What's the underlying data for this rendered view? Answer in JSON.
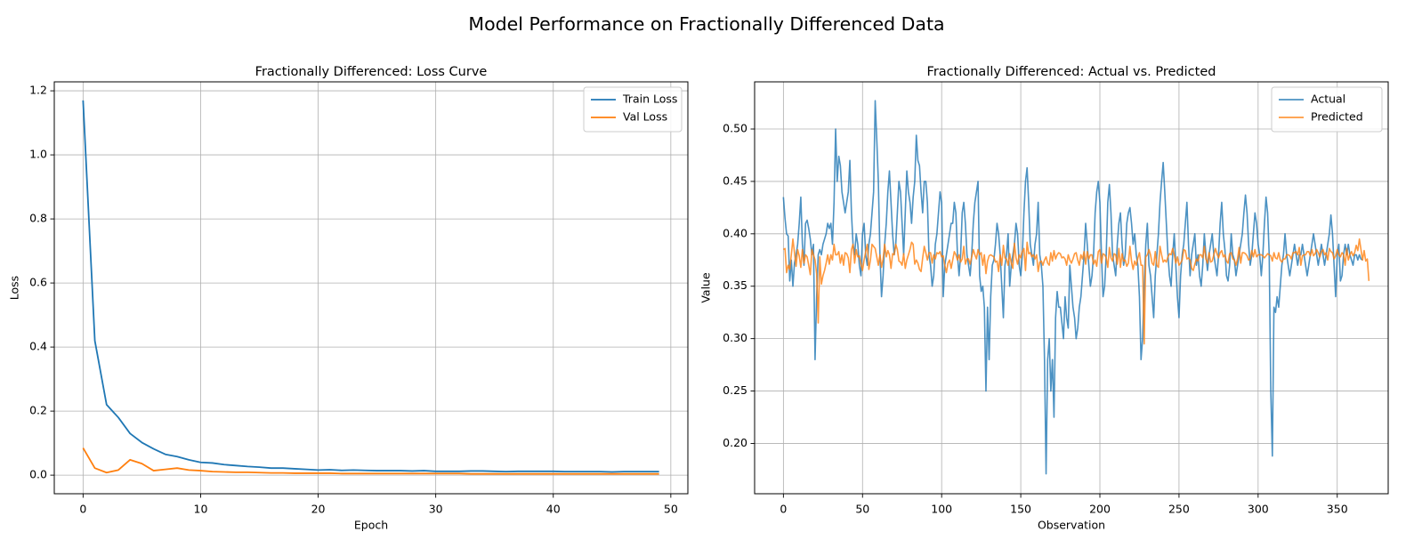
{
  "figure_title": "Model Performance on Fractionally Differenced Data",
  "chart_data": [
    {
      "type": "line",
      "title": "Fractionally Differenced: Loss Curve",
      "xlabel": "Epoch",
      "ylabel": "Loss",
      "xlim": [
        -2.45,
        51.45
      ],
      "ylim": [
        -0.058,
        1.228
      ],
      "xticks": [
        0,
        10,
        20,
        30,
        40,
        50
      ],
      "xtick_labels": [
        "0",
        "10",
        "20",
        "30",
        "40",
        "50"
      ],
      "yticks": [
        0.0,
        0.2,
        0.4,
        0.6,
        0.8,
        1.0,
        1.2
      ],
      "ytick_labels": [
        "0.0",
        "0.2",
        "0.4",
        "0.6",
        "0.8",
        "1.0",
        "1.2"
      ],
      "grid": true,
      "legend_position": "top-right",
      "series": [
        {
          "name": "Train Loss",
          "color": "#1f77b4",
          "x": [
            0,
            1,
            2,
            3,
            4,
            5,
            6,
            7,
            8,
            9,
            10,
            11,
            12,
            13,
            14,
            15,
            16,
            17,
            18,
            19,
            20,
            21,
            22,
            23,
            24,
            25,
            26,
            27,
            28,
            29,
            30,
            31,
            32,
            33,
            34,
            35,
            36,
            37,
            38,
            39,
            40,
            41,
            42,
            43,
            44,
            45,
            46,
            47,
            48,
            49
          ],
          "values": [
            1.17,
            0.42,
            0.22,
            0.18,
            0.13,
            0.102,
            0.082,
            0.065,
            0.058,
            0.048,
            0.04,
            0.038,
            0.033,
            0.03,
            0.027,
            0.025,
            0.022,
            0.022,
            0.02,
            0.018,
            0.016,
            0.017,
            0.015,
            0.016,
            0.015,
            0.014,
            0.014,
            0.014,
            0.013,
            0.014,
            0.012,
            0.012,
            0.012,
            0.013,
            0.013,
            0.012,
            0.011,
            0.012,
            0.012,
            0.012,
            0.012,
            0.011,
            0.011,
            0.011,
            0.011,
            0.01,
            0.011,
            0.011,
            0.011,
            0.011
          ]
        },
        {
          "name": "Val Loss",
          "color": "#ff7f0e",
          "x": [
            0,
            1,
            2,
            3,
            4,
            5,
            6,
            7,
            8,
            9,
            10,
            11,
            12,
            13,
            14,
            15,
            16,
            17,
            18,
            19,
            20,
            21,
            22,
            23,
            24,
            25,
            26,
            27,
            28,
            29,
            30,
            31,
            32,
            33,
            34,
            35,
            36,
            37,
            38,
            39,
            40,
            41,
            42,
            43,
            44,
            45,
            46,
            47,
            48,
            49
          ],
          "values": [
            0.085,
            0.022,
            0.008,
            0.016,
            0.048,
            0.036,
            0.014,
            0.018,
            0.022,
            0.016,
            0.014,
            0.011,
            0.01,
            0.009,
            0.009,
            0.008,
            0.007,
            0.007,
            0.006,
            0.006,
            0.006,
            0.006,
            0.005,
            0.005,
            0.005,
            0.005,
            0.005,
            0.005,
            0.005,
            0.005,
            0.005,
            0.005,
            0.005,
            0.004,
            0.004,
            0.004,
            0.004,
            0.004,
            0.004,
            0.004,
            0.004,
            0.004,
            0.004,
            0.004,
            0.004,
            0.004,
            0.004,
            0.004,
            0.004,
            0.004
          ]
        }
      ]
    },
    {
      "type": "line",
      "title": "Fractionally Differenced: Actual vs. Predicted",
      "xlabel": "Observation",
      "ylabel": "Value",
      "xlim": [
        -18.2,
        382.2
      ],
      "ylim": [
        0.152,
        0.545
      ],
      "xticks": [
        0,
        50,
        100,
        150,
        200,
        250,
        300,
        350
      ],
      "xtick_labels": [
        "0",
        "50",
        "100",
        "150",
        "200",
        "250",
        "300",
        "350"
      ],
      "yticks": [
        0.2,
        0.25,
        0.3,
        0.35,
        0.4,
        0.45,
        0.5
      ],
      "ytick_labels": [
        "0.20",
        "0.25",
        "0.30",
        "0.35",
        "0.40",
        "0.45",
        "0.50"
      ],
      "grid": true,
      "legend_position": "top-right",
      "n_points": 365,
      "series": [
        {
          "name": "Actual",
          "color": "#1f77b4",
          "opacity": 0.8,
          "values": [
            0.435,
            0.415,
            0.4,
            0.398,
            0.355,
            0.375,
            0.35,
            0.372,
            0.38,
            0.39,
            0.41,
            0.435,
            0.39,
            0.37,
            0.41,
            0.413,
            0.405,
            0.395,
            0.38,
            0.39,
            0.28,
            0.34,
            0.38,
            0.385,
            0.38,
            0.39,
            0.395,
            0.4,
            0.41,
            0.405,
            0.41,
            0.39,
            0.43,
            0.5,
            0.45,
            0.474,
            0.465,
            0.44,
            0.43,
            0.42,
            0.43,
            0.44,
            0.47,
            0.42,
            0.39,
            0.38,
            0.4,
            0.39,
            0.37,
            0.36,
            0.4,
            0.41,
            0.38,
            0.37,
            0.39,
            0.4,
            0.42,
            0.44,
            0.527,
            0.49,
            0.45,
            0.38,
            0.34,
            0.36,
            0.39,
            0.41,
            0.44,
            0.46,
            0.43,
            0.4,
            0.38,
            0.39,
            0.42,
            0.45,
            0.44,
            0.41,
            0.38,
            0.42,
            0.46,
            0.44,
            0.43,
            0.41,
            0.435,
            0.45,
            0.494,
            0.47,
            0.465,
            0.44,
            0.42,
            0.45,
            0.45,
            0.43,
            0.38,
            0.37,
            0.35,
            0.36,
            0.39,
            0.4,
            0.42,
            0.44,
            0.43,
            0.34,
            0.37,
            0.38,
            0.39,
            0.4,
            0.41,
            0.41,
            0.43,
            0.42,
            0.38,
            0.36,
            0.38,
            0.42,
            0.43,
            0.41,
            0.38,
            0.37,
            0.36,
            0.38,
            0.41,
            0.43,
            0.44,
            0.45,
            0.36,
            0.345,
            0.35,
            0.33,
            0.25,
            0.33,
            0.28,
            0.34,
            0.37,
            0.375,
            0.39,
            0.41,
            0.4,
            0.38,
            0.35,
            0.32,
            0.37,
            0.38,
            0.4,
            0.35,
            0.37,
            0.38,
            0.39,
            0.41,
            0.4,
            0.37,
            0.36,
            0.38,
            0.42,
            0.45,
            0.463,
            0.43,
            0.39,
            0.38,
            0.37,
            0.39,
            0.4,
            0.43,
            0.38,
            0.37,
            0.35,
            0.28,
            0.171,
            0.28,
            0.3,
            0.25,
            0.28,
            0.225,
            0.32,
            0.345,
            0.33,
            0.33,
            0.315,
            0.3,
            0.34,
            0.32,
            0.31,
            0.37,
            0.35,
            0.33,
            0.32,
            0.3,
            0.31,
            0.33,
            0.34,
            0.36,
            0.38,
            0.41,
            0.39,
            0.37,
            0.35,
            0.36,
            0.38,
            0.42,
            0.44,
            0.45,
            0.43,
            0.38,
            0.34,
            0.35,
            0.38,
            0.43,
            0.447,
            0.42,
            0.38,
            0.37,
            0.36,
            0.39,
            0.41,
            0.42,
            0.39,
            0.37,
            0.38,
            0.41,
            0.42,
            0.425,
            0.41,
            0.39,
            0.4,
            0.38,
            0.37,
            0.34,
            0.28,
            0.3,
            0.35,
            0.39,
            0.41,
            0.37,
            0.36,
            0.34,
            0.32,
            0.36,
            0.38,
            0.4,
            0.43,
            0.45,
            0.468,
            0.44,
            0.41,
            0.38,
            0.36,
            0.35,
            0.38,
            0.4,
            0.37,
            0.34,
            0.32,
            0.36,
            0.38,
            0.39,
            0.41,
            0.43,
            0.39,
            0.36,
            0.38,
            0.39,
            0.4,
            0.37,
            0.38,
            0.36,
            0.35,
            0.37,
            0.4,
            0.38,
            0.365,
            0.38,
            0.39,
            0.4,
            0.38,
            0.37,
            0.36,
            0.38,
            0.41,
            0.43,
            0.4,
            0.385,
            0.36,
            0.355,
            0.37,
            0.4,
            0.38,
            0.375,
            0.36,
            0.37,
            0.38,
            0.39,
            0.4,
            0.42,
            0.437,
            0.42,
            0.39,
            0.37,
            0.38,
            0.4,
            0.42,
            0.41,
            0.39,
            0.38,
            0.36,
            0.38,
            0.41,
            0.435,
            0.42,
            0.38,
            0.25,
            0.188,
            0.33,
            0.325,
            0.34,
            0.33,
            0.35,
            0.37,
            0.38,
            0.4,
            0.38,
            0.37,
            0.36,
            0.37,
            0.38,
            0.39,
            0.38,
            0.37,
            0.38,
            0.38,
            0.39,
            0.38,
            0.37,
            0.36,
            0.37,
            0.38,
            0.39,
            0.4,
            0.39,
            0.38,
            0.37,
            0.38,
            0.39,
            0.38,
            0.37,
            0.38,
            0.39,
            0.4,
            0.418,
            0.4,
            0.37,
            0.34,
            0.38,
            0.39,
            0.355,
            0.36,
            0.38,
            0.39,
            0.38,
            0.39,
            0.38,
            0.375,
            0.37,
            0.38,
            0.38,
            0.375,
            0.38,
            0.376,
            0.375
          ]
        },
        {
          "name": "Predicted",
          "color": "#ff7f0e",
          "opacity": 0.8,
          "values": [
            0.385,
            0.386,
            0.363,
            0.37,
            0.366,
            0.38,
            0.395,
            0.382,
            0.369,
            0.385,
            0.379,
            0.368,
            0.385,
            0.372,
            0.38,
            0.378,
            0.37,
            0.361,
            0.385,
            0.38,
            0.375,
            0.362,
            0.315,
            0.378,
            0.352,
            0.36,
            0.365,
            0.372,
            0.38,
            0.371,
            0.38,
            0.375,
            0.39,
            0.38,
            0.38,
            0.383,
            0.372,
            0.38,
            0.37,
            0.382,
            0.381,
            0.377,
            0.363,
            0.385,
            0.39,
            0.372,
            0.385,
            0.378,
            0.379,
            0.371,
            0.365,
            0.375,
            0.383,
            0.39,
            0.366,
            0.375,
            0.39,
            0.388,
            0.386,
            0.378,
            0.37,
            0.38,
            0.368,
            0.376,
            0.39,
            0.378,
            0.384,
            0.38,
            0.367,
            0.381,
            0.38,
            0.39,
            0.385,
            0.374,
            0.373,
            0.37,
            0.381,
            0.367,
            0.375,
            0.38,
            0.385,
            0.392,
            0.39,
            0.371,
            0.375,
            0.372,
            0.366,
            0.364,
            0.377,
            0.388,
            0.382,
            0.375,
            0.382,
            0.382,
            0.372,
            0.38,
            0.376,
            0.382,
            0.381,
            0.383,
            0.378,
            0.379,
            0.37,
            0.363,
            0.372,
            0.375,
            0.367,
            0.375,
            0.383,
            0.38,
            0.375,
            0.38,
            0.373,
            0.376,
            0.388,
            0.371,
            0.376,
            0.376,
            0.371,
            0.378,
            0.385,
            0.38,
            0.376,
            0.385,
            0.38,
            0.382,
            0.37,
            0.38,
            0.362,
            0.374,
            0.379,
            0.38,
            0.379,
            0.378,
            0.373,
            0.374,
            0.364,
            0.38,
            0.37,
            0.389,
            0.377,
            0.376,
            0.37,
            0.381,
            0.372,
            0.367,
            0.391,
            0.377,
            0.371,
            0.38,
            0.377,
            0.383,
            0.386,
            0.365,
            0.392,
            0.381,
            0.382,
            0.378,
            0.38,
            0.376,
            0.38,
            0.364,
            0.373,
            0.374,
            0.37,
            0.375,
            0.378,
            0.372,
            0.37,
            0.382,
            0.374,
            0.384,
            0.376,
            0.38,
            0.382,
            0.381,
            0.377,
            0.378,
            0.376,
            0.37,
            0.38,
            0.375,
            0.372,
            0.376,
            0.381,
            0.382,
            0.375,
            0.37,
            0.38,
            0.376,
            0.383,
            0.371,
            0.383,
            0.376,
            0.38,
            0.38,
            0.371,
            0.375,
            0.369,
            0.383,
            0.385,
            0.372,
            0.381,
            0.38,
            0.377,
            0.368,
            0.387,
            0.377,
            0.374,
            0.381,
            0.38,
            0.371,
            0.386,
            0.368,
            0.381,
            0.374,
            0.375,
            0.369,
            0.372,
            0.388,
            0.374,
            0.366,
            0.374,
            0.37,
            0.377,
            0.382,
            0.37,
            0.37,
            0.295,
            0.378,
            0.38,
            0.385,
            0.38,
            0.372,
            0.37,
            0.383,
            0.37,
            0.368,
            0.388,
            0.38,
            0.373,
            0.375,
            0.373,
            0.378,
            0.381,
            0.38,
            0.386,
            0.38,
            0.372,
            0.378,
            0.37,
            0.372,
            0.375,
            0.385,
            0.384,
            0.376,
            0.377,
            0.375,
            0.367,
            0.365,
            0.371,
            0.376,
            0.374,
            0.38,
            0.38,
            0.377,
            0.388,
            0.376,
            0.372,
            0.382,
            0.373,
            0.374,
            0.38,
            0.386,
            0.381,
            0.377,
            0.382,
            0.384,
            0.378,
            0.38,
            0.374,
            0.372,
            0.381,
            0.382,
            0.376,
            0.375,
            0.37,
            0.376,
            0.387,
            0.372,
            0.382,
            0.382,
            0.381,
            0.379,
            0.375,
            0.376,
            0.384,
            0.378,
            0.385,
            0.378,
            0.38,
            0.38,
            0.38,
            0.379,
            0.377,
            0.379,
            0.381,
            0.38,
            0.379,
            0.374,
            0.382,
            0.377,
            0.376,
            0.382,
            0.375,
            0.373,
            0.376,
            0.376,
            0.38,
            0.38,
            0.379,
            0.376,
            0.382,
            0.382,
            0.383,
            0.38,
            0.387,
            0.37,
            0.379,
            0.38,
            0.38,
            0.383,
            0.383,
            0.379,
            0.385,
            0.379,
            0.381,
            0.385,
            0.382,
            0.378,
            0.383,
            0.385,
            0.38,
            0.382,
            0.375,
            0.386,
            0.383,
            0.382,
            0.376,
            0.379,
            0.385,
            0.38,
            0.378,
            0.382,
            0.38,
            0.37,
            0.386,
            0.375,
            0.38,
            0.383,
            0.379,
            0.382,
            0.389,
            0.384,
            0.395,
            0.385,
            0.375,
            0.384,
            0.374,
            0.376,
            0.355
          ]
        }
      ]
    }
  ]
}
